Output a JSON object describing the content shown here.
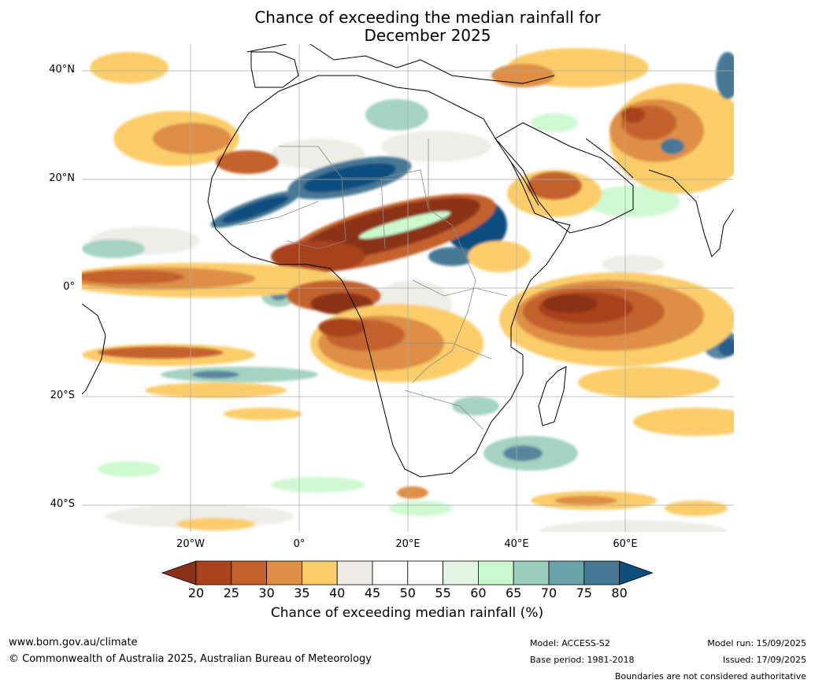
{
  "title": {
    "line1": "Chance of exceeding the median rainfall for",
    "line2": "December 2025"
  },
  "lat_labels": [
    "40°N",
    "20°N",
    "0°",
    "20°S",
    "40°S"
  ],
  "lon_labels": [
    "20°W",
    "0°",
    "20°E",
    "40°E",
    "60°E"
  ],
  "map": {
    "extent": {
      "lon": [
        -40,
        80
      ],
      "lat": [
        -45,
        45
      ]
    },
    "ocean_color": "#ffffff",
    "land_outline_color": "#000000",
    "border_color": "#888888"
  },
  "colorbar": {
    "ticks": [
      "20",
      "25",
      "30",
      "35",
      "40",
      "45",
      "50",
      "55",
      "60",
      "65",
      "70",
      "75",
      "80"
    ],
    "colors": [
      "#8c3118",
      "#a8431e",
      "#c4622d",
      "#de8f45",
      "#fbcd6b",
      "#eeebe6",
      "#ffffff",
      "#ffffff",
      "#e4f5e6",
      "#c9f9cd",
      "#9bcfbb",
      "#69a3a8",
      "#477895",
      "#0e4e7f"
    ],
    "title": "Chance of exceeding median rainfall (%)"
  },
  "footer": {
    "url": "www.bom.gov.au/climate",
    "copyright": "© Commonwealth of Australia 2025, Australian Bureau of Meteorology",
    "model": "Model: ACCESS-S2",
    "base_period": "Base period: 1981-2018",
    "model_run": "Model run: 15/09/2025",
    "issued": "Issued: 17/09/2025",
    "disclaimer": "Boundaries are not considered authoritative"
  }
}
